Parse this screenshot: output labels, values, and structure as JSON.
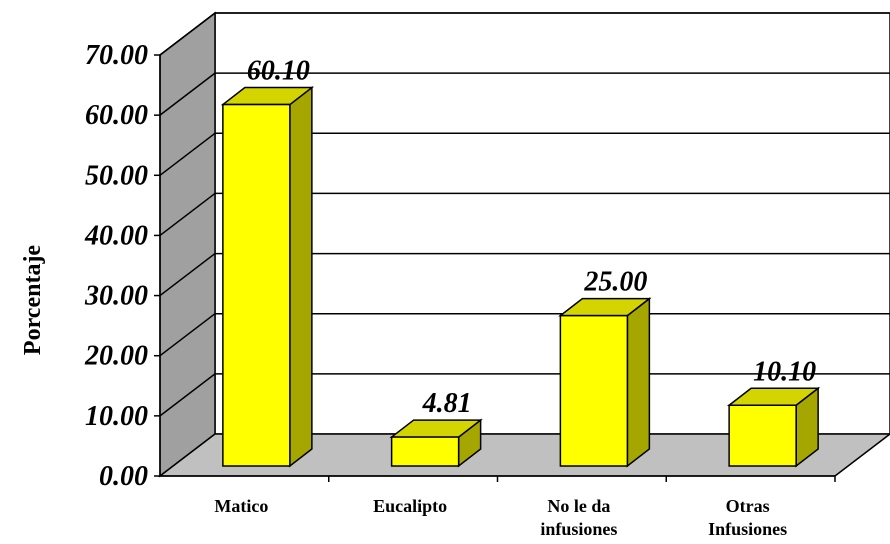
{
  "chart_data": {
    "type": "bar",
    "title": "",
    "xlabel": "",
    "ylabel": "Porcentaje",
    "categories": [
      [
        "Matico"
      ],
      [
        "Eucalipto"
      ],
      [
        "No le da",
        "infusiones"
      ],
      [
        "Otras",
        "Infusiones"
      ]
    ],
    "values": [
      60.1,
      4.81,
      25.0,
      10.1
    ],
    "data_labels": [
      "60.10",
      "4.81",
      "25.00",
      "10.10"
    ],
    "ylim": [
      0,
      70
    ],
    "yticks": [
      "0.00",
      "10.00",
      "20.00",
      "30.00",
      "40.00",
      "50.00",
      "60.00",
      "70.00"
    ],
    "grid": true,
    "style": "3d",
    "colors": {
      "bar_front": "#ffff00",
      "bar_top": "#d4d400",
      "bar_side": "#a6a600",
      "back_wall": "#ffffff",
      "side_wall": "#a0a0a0",
      "floor": "#c0c0c0"
    }
  }
}
